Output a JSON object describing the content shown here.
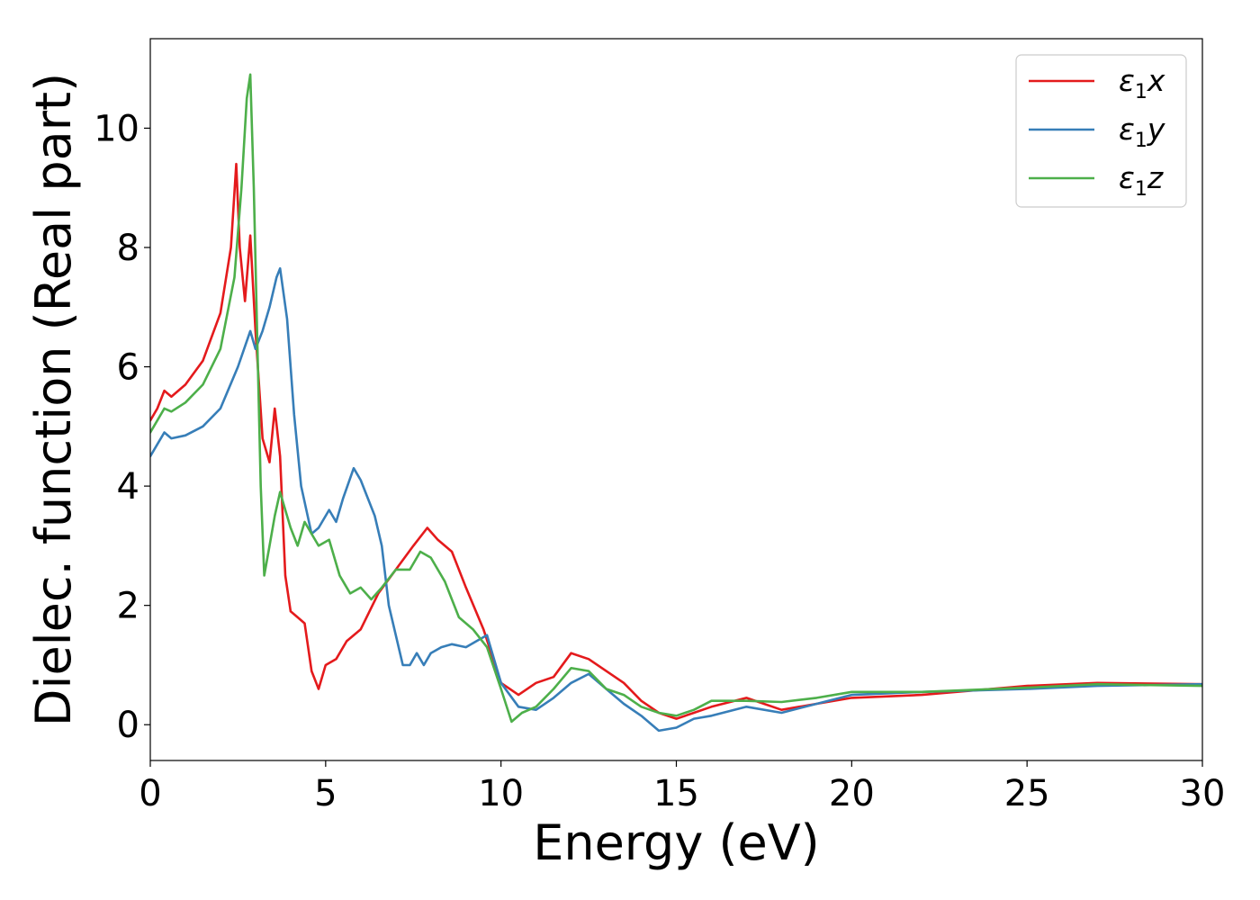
{
  "chart_data": {
    "type": "line",
    "title": "",
    "xlabel": "Energy (eV)",
    "ylabel": "Dielec. function (Real part)",
    "xlim": [
      0,
      30
    ],
    "ylim": [
      -0.6,
      11.5
    ],
    "xticks": [
      0,
      5,
      10,
      15,
      20,
      25,
      30
    ],
    "yticks": [
      0,
      2,
      4,
      6,
      8,
      10
    ],
    "grid": false,
    "legend_position": "top-right",
    "series": [
      {
        "name": "ε1x",
        "legend": {
          "base": "ε",
          "sub": "1",
          "var": "x"
        },
        "color": "#e41a1c",
        "x": [
          0,
          0.2,
          0.4,
          0.6,
          1.0,
          1.5,
          2.0,
          2.3,
          2.45,
          2.55,
          2.7,
          2.85,
          3.0,
          3.2,
          3.4,
          3.55,
          3.7,
          3.85,
          4.0,
          4.2,
          4.4,
          4.6,
          4.8,
          5.0,
          5.3,
          5.6,
          6.0,
          6.5,
          7.0,
          7.5,
          7.9,
          8.2,
          8.6,
          9.0,
          9.5,
          10.0,
          10.5,
          11.0,
          11.5,
          12.0,
          12.5,
          13.0,
          13.5,
          14.0,
          14.5,
          15.0,
          15.5,
          16.0,
          17.0,
          18.0,
          19.0,
          20.0,
          22.0,
          25.0,
          27.0,
          30.0
        ],
        "y": [
          5.1,
          5.3,
          5.6,
          5.5,
          5.7,
          6.1,
          6.9,
          8.0,
          9.4,
          8.0,
          7.1,
          8.2,
          6.6,
          4.8,
          4.4,
          5.3,
          4.5,
          2.5,
          1.9,
          1.8,
          1.7,
          0.9,
          0.6,
          1.0,
          1.1,
          1.4,
          1.6,
          2.2,
          2.6,
          3.0,
          3.3,
          3.1,
          2.9,
          2.3,
          1.6,
          0.7,
          0.5,
          0.7,
          0.8,
          1.2,
          1.1,
          0.9,
          0.7,
          0.4,
          0.2,
          0.1,
          0.2,
          0.3,
          0.45,
          0.25,
          0.35,
          0.45,
          0.5,
          0.65,
          0.7,
          0.68
        ]
      },
      {
        "name": "ε1y",
        "legend": {
          "base": "ε",
          "sub": "1",
          "var": "y"
        },
        "color": "#377eb8",
        "x": [
          0,
          0.2,
          0.4,
          0.6,
          1.0,
          1.5,
          2.0,
          2.5,
          2.85,
          3.0,
          3.2,
          3.4,
          3.6,
          3.7,
          3.9,
          4.1,
          4.3,
          4.6,
          4.8,
          5.1,
          5.3,
          5.5,
          5.8,
          6.0,
          6.2,
          6.4,
          6.6,
          6.8,
          7.0,
          7.2,
          7.4,
          7.6,
          7.8,
          8.0,
          8.3,
          8.6,
          9.0,
          9.3,
          9.6,
          10.0,
          10.5,
          11.0,
          11.5,
          12.0,
          12.5,
          13.0,
          13.5,
          14.0,
          14.5,
          15.0,
          15.5,
          16.0,
          17.0,
          18.0,
          19.0,
          20.0,
          22.0,
          25.0,
          27.0,
          30.0
        ],
        "y": [
          4.5,
          4.7,
          4.9,
          4.8,
          4.85,
          5.0,
          5.3,
          6.0,
          6.6,
          6.3,
          6.6,
          7.0,
          7.5,
          7.65,
          6.8,
          5.2,
          4.0,
          3.2,
          3.3,
          3.6,
          3.4,
          3.8,
          4.3,
          4.1,
          3.8,
          3.5,
          3.0,
          2.0,
          1.5,
          1.0,
          1.0,
          1.2,
          1.0,
          1.2,
          1.3,
          1.35,
          1.3,
          1.4,
          1.5,
          0.7,
          0.3,
          0.25,
          0.45,
          0.7,
          0.85,
          0.6,
          0.35,
          0.15,
          -0.1,
          -0.05,
          0.1,
          0.15,
          0.3,
          0.2,
          0.35,
          0.5,
          0.55,
          0.6,
          0.65,
          0.68
        ]
      },
      {
        "name": "ε1z",
        "legend": {
          "base": "ε",
          "sub": "1",
          "var": "z"
        },
        "color": "#4daf4a",
        "x": [
          0,
          0.2,
          0.4,
          0.6,
          1.0,
          1.5,
          2.0,
          2.4,
          2.6,
          2.75,
          2.85,
          2.95,
          3.05,
          3.15,
          3.25,
          3.4,
          3.55,
          3.7,
          3.85,
          4.0,
          4.2,
          4.4,
          4.6,
          4.8,
          5.1,
          5.4,
          5.7,
          6.0,
          6.3,
          6.6,
          7.0,
          7.4,
          7.7,
          8.0,
          8.4,
          8.8,
          9.2,
          9.6,
          10.0,
          10.3,
          10.6,
          11.0,
          11.5,
          12.0,
          12.5,
          13.0,
          13.5,
          14.0,
          14.5,
          15.0,
          15.5,
          16.0,
          17.0,
          18.0,
          19.0,
          20.0,
          22.0,
          25.0,
          27.0,
          30.0
        ],
        "y": [
          4.9,
          5.1,
          5.3,
          5.25,
          5.4,
          5.7,
          6.3,
          7.5,
          9.0,
          10.5,
          10.9,
          9.0,
          6.5,
          4.0,
          2.5,
          3.0,
          3.5,
          3.9,
          3.6,
          3.3,
          3.0,
          3.4,
          3.2,
          3.0,
          3.1,
          2.5,
          2.2,
          2.3,
          2.1,
          2.3,
          2.6,
          2.6,
          2.9,
          2.8,
          2.4,
          1.8,
          1.6,
          1.3,
          0.6,
          0.05,
          0.2,
          0.3,
          0.6,
          0.95,
          0.9,
          0.6,
          0.5,
          0.3,
          0.2,
          0.15,
          0.25,
          0.4,
          0.4,
          0.38,
          0.45,
          0.55,
          0.55,
          0.62,
          0.68,
          0.65
        ]
      }
    ]
  }
}
